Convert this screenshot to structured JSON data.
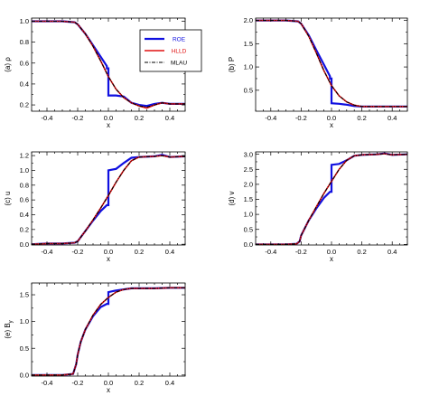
{
  "chart_data": [
    {
      "type": "line",
      "panel_label": "(a) ρ",
      "xlabel": "x",
      "xlim": [
        -0.5,
        0.5
      ],
      "ylim": [
        0.14,
        1.03
      ],
      "xticks": [
        "-0.4",
        "-0.2",
        "0.0",
        "0.2",
        "0.4"
      ],
      "yticks": [
        "0.2",
        "0.4",
        "0.6",
        "0.8",
        "1.0"
      ],
      "ytick_values": [
        0.2,
        0.4,
        0.6,
        0.8,
        1.0
      ],
      "legend": {
        "position": "top-right",
        "entries": [
          "ROE",
          "HLLD",
          "MLAU"
        ]
      },
      "series": [
        {
          "name": "ROE",
          "color": "#1010e0",
          "x": [
            -0.5,
            -0.3,
            -0.22,
            -0.2,
            -0.15,
            -0.1,
            -0.05,
            -0.01,
            -0.01,
            0.0,
            0.0,
            0.05,
            0.1,
            0.15,
            0.2,
            0.25,
            0.3,
            0.35,
            0.4,
            0.5
          ],
          "y": [
            1.0,
            1.0,
            0.99,
            0.97,
            0.88,
            0.77,
            0.66,
            0.57,
            0.55,
            0.55,
            0.29,
            0.29,
            0.28,
            0.22,
            0.2,
            0.19,
            0.21,
            0.22,
            0.21,
            0.21
          ]
        },
        {
          "name": "HLLD",
          "color": "#e01010",
          "x": [
            -0.5,
            -0.3,
            -0.22,
            -0.2,
            -0.15,
            -0.1,
            -0.05,
            0.0,
            0.05,
            0.1,
            0.15,
            0.2,
            0.25,
            0.3,
            0.35,
            0.4,
            0.5
          ],
          "y": [
            1.0,
            1.0,
            0.99,
            0.97,
            0.88,
            0.76,
            0.62,
            0.47,
            0.35,
            0.27,
            0.22,
            0.19,
            0.17,
            0.2,
            0.22,
            0.21,
            0.21
          ]
        },
        {
          "name": "MLAU",
          "color": "#000000",
          "x": [
            -0.5,
            -0.3,
            -0.22,
            -0.2,
            -0.15,
            -0.1,
            -0.05,
            0.0,
            0.05,
            0.1,
            0.15,
            0.2,
            0.25,
            0.3,
            0.35,
            0.4,
            0.5
          ],
          "y": [
            1.0,
            1.0,
            0.99,
            0.97,
            0.88,
            0.76,
            0.62,
            0.47,
            0.35,
            0.27,
            0.22,
            0.19,
            0.18,
            0.2,
            0.22,
            0.21,
            0.21
          ]
        }
      ]
    },
    {
      "type": "line",
      "panel_label": "(b) P",
      "xlabel": "x",
      "xlim": [
        -0.5,
        0.5
      ],
      "ylim": [
        0.05,
        2.05
      ],
      "xticks": [
        "-0.4",
        "-0.2",
        "0.0",
        "0.2",
        "0.4"
      ],
      "yticks": [
        "0.5",
        "1.0",
        "1.5",
        "2.0"
      ],
      "ytick_values": [
        0.5,
        1.0,
        1.5,
        2.0
      ],
      "series": [
        {
          "name": "ROE",
          "color": "#1010e0",
          "x": [
            -0.5,
            -0.3,
            -0.22,
            -0.2,
            -0.15,
            -0.1,
            -0.05,
            -0.01,
            -0.01,
            0.0,
            0.0,
            0.05,
            0.1,
            0.15,
            0.2,
            0.3,
            0.4,
            0.5
          ],
          "y": [
            2.0,
            2.0,
            1.98,
            1.93,
            1.68,
            1.36,
            1.05,
            0.8,
            0.75,
            0.75,
            0.22,
            0.21,
            0.19,
            0.16,
            0.15,
            0.15,
            0.15,
            0.15
          ]
        },
        {
          "name": "HLLD",
          "color": "#e01010",
          "x": [
            -0.5,
            -0.3,
            -0.22,
            -0.2,
            -0.15,
            -0.1,
            -0.05,
            0.0,
            0.05,
            0.1,
            0.15,
            0.2,
            0.3,
            0.4,
            0.5
          ],
          "y": [
            2.0,
            2.0,
            1.98,
            1.93,
            1.66,
            1.3,
            0.92,
            0.6,
            0.38,
            0.25,
            0.18,
            0.15,
            0.15,
            0.15,
            0.15
          ]
        },
        {
          "name": "MLAU",
          "color": "#000000",
          "x": [
            -0.5,
            -0.3,
            -0.22,
            -0.2,
            -0.15,
            -0.1,
            -0.05,
            0.0,
            0.05,
            0.1,
            0.15,
            0.2,
            0.3,
            0.4,
            0.5
          ],
          "y": [
            2.0,
            2.0,
            1.98,
            1.93,
            1.66,
            1.3,
            0.92,
            0.6,
            0.38,
            0.25,
            0.18,
            0.15,
            0.15,
            0.15,
            0.15
          ]
        }
      ]
    },
    {
      "type": "line",
      "panel_label": "(c) u",
      "xlabel": "x",
      "xlim": [
        -0.5,
        0.5
      ],
      "ylim": [
        -0.01,
        1.25
      ],
      "xticks": [
        "-0.4",
        "-0.2",
        "0.0",
        "0.2",
        "0.4"
      ],
      "yticks": [
        "0.0",
        "0.2",
        "0.4",
        "0.6",
        "0.8",
        "1.0",
        "1.2"
      ],
      "ytick_values": [
        0.0,
        0.2,
        0.4,
        0.6,
        0.8,
        1.0,
        1.2
      ],
      "series": [
        {
          "name": "ROE",
          "color": "#1010e0",
          "x": [
            -0.5,
            -0.4,
            -0.3,
            -0.22,
            -0.2,
            -0.15,
            -0.1,
            -0.05,
            -0.01,
            -0.01,
            0.0,
            0.0,
            0.05,
            0.1,
            0.15,
            0.2,
            0.3,
            0.35,
            0.4,
            0.5
          ],
          "y": [
            0.0,
            0.01,
            0.01,
            0.02,
            0.04,
            0.18,
            0.32,
            0.45,
            0.53,
            0.53,
            0.53,
            1.0,
            1.02,
            1.1,
            1.17,
            1.18,
            1.19,
            1.21,
            1.18,
            1.19
          ]
        },
        {
          "name": "HLLD",
          "color": "#e01010",
          "x": [
            -0.5,
            -0.4,
            -0.3,
            -0.22,
            -0.2,
            -0.15,
            -0.1,
            -0.05,
            0.0,
            0.05,
            0.1,
            0.15,
            0.2,
            0.3,
            0.35,
            0.4,
            0.5
          ],
          "y": [
            0.0,
            0.01,
            0.01,
            0.02,
            0.04,
            0.18,
            0.33,
            0.49,
            0.66,
            0.84,
            1.0,
            1.13,
            1.18,
            1.19,
            1.2,
            1.18,
            1.19
          ]
        },
        {
          "name": "MLAU",
          "color": "#000000",
          "x": [
            -0.5,
            -0.4,
            -0.3,
            -0.22,
            -0.2,
            -0.15,
            -0.1,
            -0.05,
            0.0,
            0.05,
            0.1,
            0.15,
            0.2,
            0.3,
            0.35,
            0.4,
            0.5
          ],
          "y": [
            0.0,
            0.01,
            0.01,
            0.02,
            0.04,
            0.18,
            0.33,
            0.49,
            0.66,
            0.84,
            1.0,
            1.13,
            1.18,
            1.19,
            1.2,
            1.18,
            1.19
          ]
        }
      ]
    },
    {
      "type": "line",
      "panel_label": "(d) v",
      "xlabel": "x",
      "xlim": [
        -0.5,
        0.5
      ],
      "ylim": [
        -0.02,
        3.08
      ],
      "xticks": [
        "-0.4",
        "-0.2",
        "0.0",
        "0.2",
        "0.4"
      ],
      "yticks": [
        "0.0",
        "0.5",
        "1.0",
        "1.5",
        "2.0",
        "2.5",
        "3.0"
      ],
      "ytick_values": [
        0.0,
        0.5,
        1.0,
        1.5,
        2.0,
        2.5,
        3.0
      ],
      "series": [
        {
          "name": "ROE",
          "color": "#1010e0",
          "x": [
            -0.5,
            -0.3,
            -0.23,
            -0.21,
            -0.2,
            -0.15,
            -0.1,
            -0.05,
            -0.01,
            -0.01,
            0.0,
            0.0,
            0.05,
            0.1,
            0.15,
            0.2,
            0.3,
            0.35,
            0.4,
            0.5
          ],
          "y": [
            0.0,
            0.0,
            0.02,
            0.1,
            0.3,
            0.8,
            1.2,
            1.55,
            1.75,
            1.75,
            1.75,
            2.65,
            2.68,
            2.8,
            2.95,
            2.98,
            3.0,
            3.03,
            2.98,
            3.0
          ]
        },
        {
          "name": "HLLD",
          "color": "#e01010",
          "x": [
            -0.5,
            -0.3,
            -0.23,
            -0.21,
            -0.2,
            -0.15,
            -0.1,
            -0.05,
            0.0,
            0.05,
            0.1,
            0.15,
            0.2,
            0.3,
            0.35,
            0.4,
            0.5
          ],
          "y": [
            0.0,
            0.0,
            0.02,
            0.1,
            0.3,
            0.8,
            1.25,
            1.7,
            2.1,
            2.5,
            2.8,
            2.95,
            2.98,
            3.0,
            3.02,
            2.98,
            3.0
          ]
        },
        {
          "name": "MLAU",
          "color": "#000000",
          "x": [
            -0.5,
            -0.3,
            -0.23,
            -0.21,
            -0.2,
            -0.15,
            -0.1,
            -0.05,
            0.0,
            0.05,
            0.1,
            0.15,
            0.2,
            0.3,
            0.35,
            0.4,
            0.5
          ],
          "y": [
            0.0,
            0.0,
            0.02,
            0.1,
            0.3,
            0.8,
            1.25,
            1.7,
            2.1,
            2.5,
            2.8,
            2.95,
            2.98,
            3.0,
            3.02,
            2.98,
            3.0
          ]
        }
      ]
    },
    {
      "type": "line",
      "panel_label": "(e) B",
      "panel_label_sub": "y",
      "xlabel": "x",
      "xlim": [
        -0.5,
        0.5
      ],
      "ylim": [
        -0.02,
        1.72
      ],
      "xticks": [
        "-0.4",
        "-0.2",
        "0.0",
        "0.2",
        "0.4"
      ],
      "yticks": [
        "0.0",
        "0.5",
        "1.0",
        "1.5"
      ],
      "ytick_values": [
        0.0,
        0.5,
        1.0,
        1.5
      ],
      "series": [
        {
          "name": "ROE",
          "color": "#1010e0",
          "x": [
            -0.5,
            -0.3,
            -0.23,
            -0.21,
            -0.2,
            -0.18,
            -0.15,
            -0.1,
            -0.05,
            -0.01,
            -0.01,
            0.0,
            0.0,
            0.05,
            0.1,
            0.15,
            0.2,
            0.3,
            0.4,
            0.5
          ],
          "y": [
            0.0,
            0.0,
            0.02,
            0.2,
            0.38,
            0.62,
            0.85,
            1.1,
            1.27,
            1.33,
            1.33,
            1.33,
            1.55,
            1.58,
            1.6,
            1.62,
            1.62,
            1.62,
            1.63,
            1.63
          ]
        },
        {
          "name": "HLLD",
          "color": "#e01010",
          "x": [
            -0.5,
            -0.3,
            -0.23,
            -0.21,
            -0.2,
            -0.18,
            -0.15,
            -0.1,
            -0.05,
            0.0,
            0.05,
            0.1,
            0.15,
            0.2,
            0.3,
            0.4,
            0.5
          ],
          "y": [
            0.0,
            0.0,
            0.02,
            0.2,
            0.38,
            0.62,
            0.85,
            1.12,
            1.32,
            1.45,
            1.55,
            1.6,
            1.62,
            1.62,
            1.62,
            1.63,
            1.63
          ]
        },
        {
          "name": "MLAU",
          "color": "#000000",
          "x": [
            -0.5,
            -0.3,
            -0.23,
            -0.21,
            -0.2,
            -0.18,
            -0.15,
            -0.1,
            -0.05,
            0.0,
            0.05,
            0.1,
            0.15,
            0.2,
            0.3,
            0.4,
            0.5
          ],
          "y": [
            0.0,
            0.0,
            0.02,
            0.2,
            0.38,
            0.62,
            0.85,
            1.12,
            1.32,
            1.45,
            1.55,
            1.6,
            1.62,
            1.62,
            1.62,
            1.63,
            1.63
          ]
        }
      ]
    }
  ]
}
